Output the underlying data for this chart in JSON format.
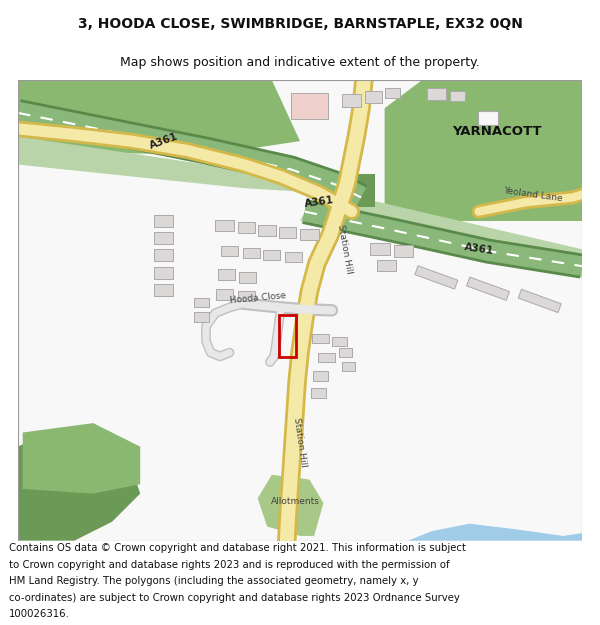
{
  "title_line1": "3, HOODA CLOSE, SWIMBRIDGE, BARNSTAPLE, EX32 0QN",
  "title_line2": "Map shows position and indicative extent of the property.",
  "footer_lines": [
    "Contains OS data © Crown copyright and database right 2021. This information is subject",
    "to Crown copyright and database rights 2023 and is reproduced with the permission of",
    "HM Land Registry. The polygons (including the associated geometry, namely x, y",
    "co-ordinates) are subject to Crown copyright and database rights 2023 Ordnance Survey",
    "100026316."
  ],
  "fig_bg": "#ffffff",
  "map_bg": "#f7f7f7",
  "road_yellow_fill": "#f5e9a8",
  "road_yellow_border": "#d4b84a",
  "road_green_fill": "#8ab87a",
  "road_green_border": "#5a8a4a",
  "road_green_light": "#b8d4a8",
  "road_grey_fill": "#e8e8e8",
  "road_grey_border": "#c0c0c0",
  "building_fill": "#ddd8d8",
  "building_outline": "#aaaaaa",
  "green_dark": "#6a9a55",
  "green_medium": "#8ab870",
  "green_light": "#a8c888",
  "blue_river": "#a0cce8",
  "plot_color": "#cc0000",
  "pink_bldg": "#f0d0cc",
  "white_bldg": "#f8f8f8"
}
